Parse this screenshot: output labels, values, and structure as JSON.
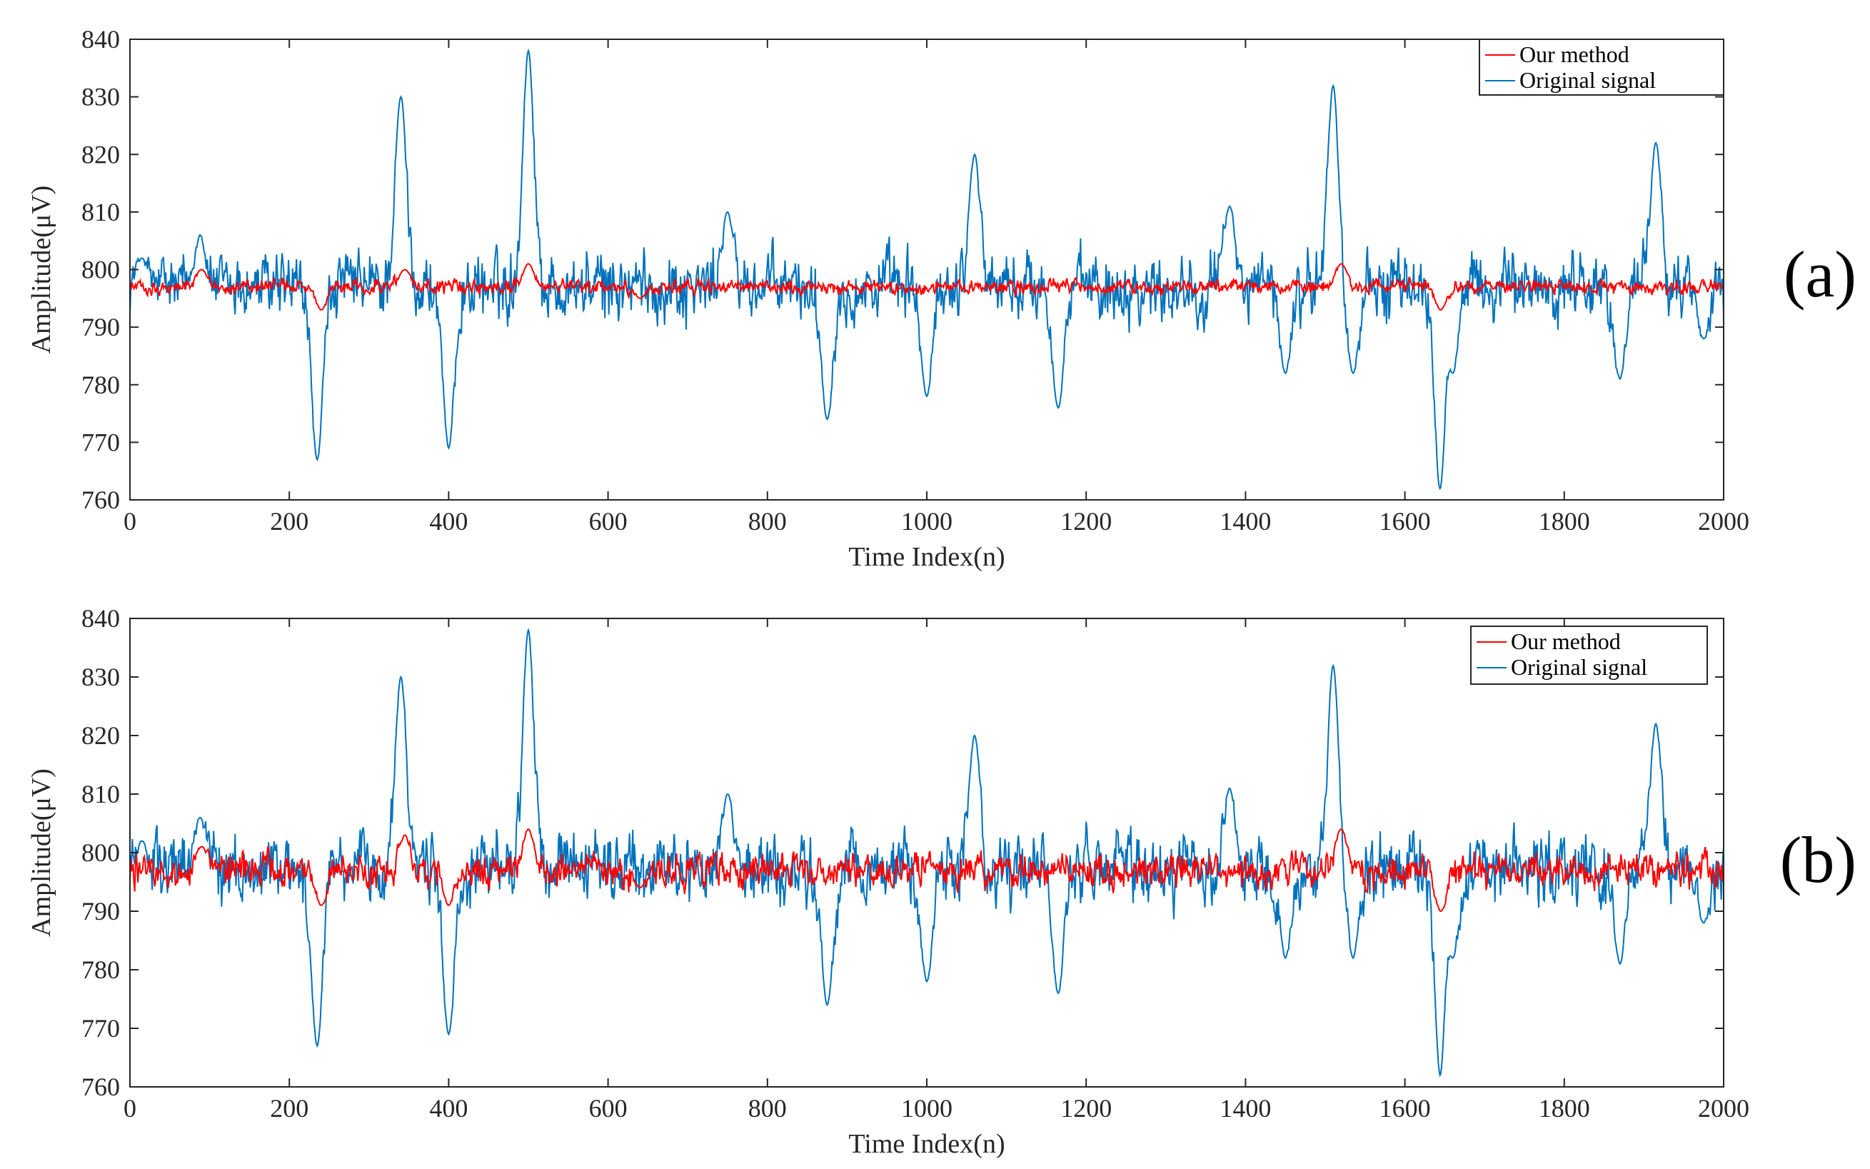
{
  "chart_data": [
    {
      "type": "line",
      "panel_label": "(a)",
      "xlabel": "Time Index(n)",
      "ylabel": "Amplitude(μV)",
      "xlim": [
        0,
        2000
      ],
      "ylim": [
        760,
        840
      ],
      "xticks": [
        0,
        200,
        400,
        600,
        800,
        1000,
        1200,
        1400,
        1600,
        1800,
        2000
      ],
      "yticks": [
        760,
        770,
        780,
        790,
        800,
        810,
        820,
        830,
        840
      ],
      "legend_position": "top-right",
      "series": [
        {
          "name": "Original signal",
          "color": "#0072BD",
          "baseline": 797,
          "noise_amplitude": 6,
          "events": [
            [
              15,
              802
            ],
            [
              88,
              806
            ],
            [
              235,
              767
            ],
            [
              340,
              830
            ],
            [
              400,
              769
            ],
            [
              500,
              838
            ],
            [
              750,
              810
            ],
            [
              875,
              774
            ],
            [
              1000,
              778
            ],
            [
              1060,
              820
            ],
            [
              1165,
              776
            ],
            [
              1380,
              811
            ],
            [
              1450,
              782
            ],
            [
              1510,
              832
            ],
            [
              1535,
              782
            ],
            [
              1645,
              760
            ],
            [
              1660,
              782
            ],
            [
              1870,
              781
            ],
            [
              1915,
              822
            ],
            [
              1975,
              788
            ]
          ]
        },
        {
          "name": "Our method",
          "color": "#FF0000",
          "baseline": 797,
          "noise_amplitude": 1.2,
          "events": [
            [
              90,
              800
            ],
            [
              240,
              793
            ],
            [
              345,
              800
            ],
            [
              500,
              801
            ],
            [
              640,
              795
            ],
            [
              1520,
              801
            ],
            [
              1645,
              793
            ]
          ]
        }
      ]
    },
    {
      "type": "line",
      "panel_label": "(b)",
      "xlabel": "Time Index(n)",
      "ylabel": "Amplitude(μV)",
      "xlim": [
        0,
        2000
      ],
      "ylim": [
        760,
        840
      ],
      "xticks": [
        0,
        200,
        400,
        600,
        800,
        1000,
        1200,
        1400,
        1600,
        1800,
        2000
      ],
      "yticks": [
        760,
        770,
        780,
        790,
        800,
        810,
        820,
        830,
        840
      ],
      "legend_position": "top-right",
      "series": [
        {
          "name": "Original signal",
          "color": "#0072BD",
          "baseline": 797,
          "noise_amplitude": 6,
          "events": [
            [
              15,
              802
            ],
            [
              88,
              806
            ],
            [
              235,
              767
            ],
            [
              340,
              830
            ],
            [
              400,
              769
            ],
            [
              500,
              838
            ],
            [
              750,
              810
            ],
            [
              875,
              774
            ],
            [
              1000,
              778
            ],
            [
              1060,
              820
            ],
            [
              1165,
              776
            ],
            [
              1380,
              811
            ],
            [
              1450,
              782
            ],
            [
              1510,
              832
            ],
            [
              1535,
              782
            ],
            [
              1645,
              760
            ],
            [
              1660,
              782
            ],
            [
              1870,
              781
            ],
            [
              1915,
              822
            ],
            [
              1975,
              788
            ]
          ]
        },
        {
          "name": "Our method",
          "color": "#FF0000",
          "baseline": 797,
          "noise_amplitude": 2.8,
          "events": [
            [
              90,
              801
            ],
            [
              240,
              791
            ],
            [
              345,
              803
            ],
            [
              400,
              791
            ],
            [
              500,
              804
            ],
            [
              640,
              794
            ],
            [
              1520,
              804
            ],
            [
              1645,
              790
            ]
          ]
        }
      ]
    }
  ]
}
